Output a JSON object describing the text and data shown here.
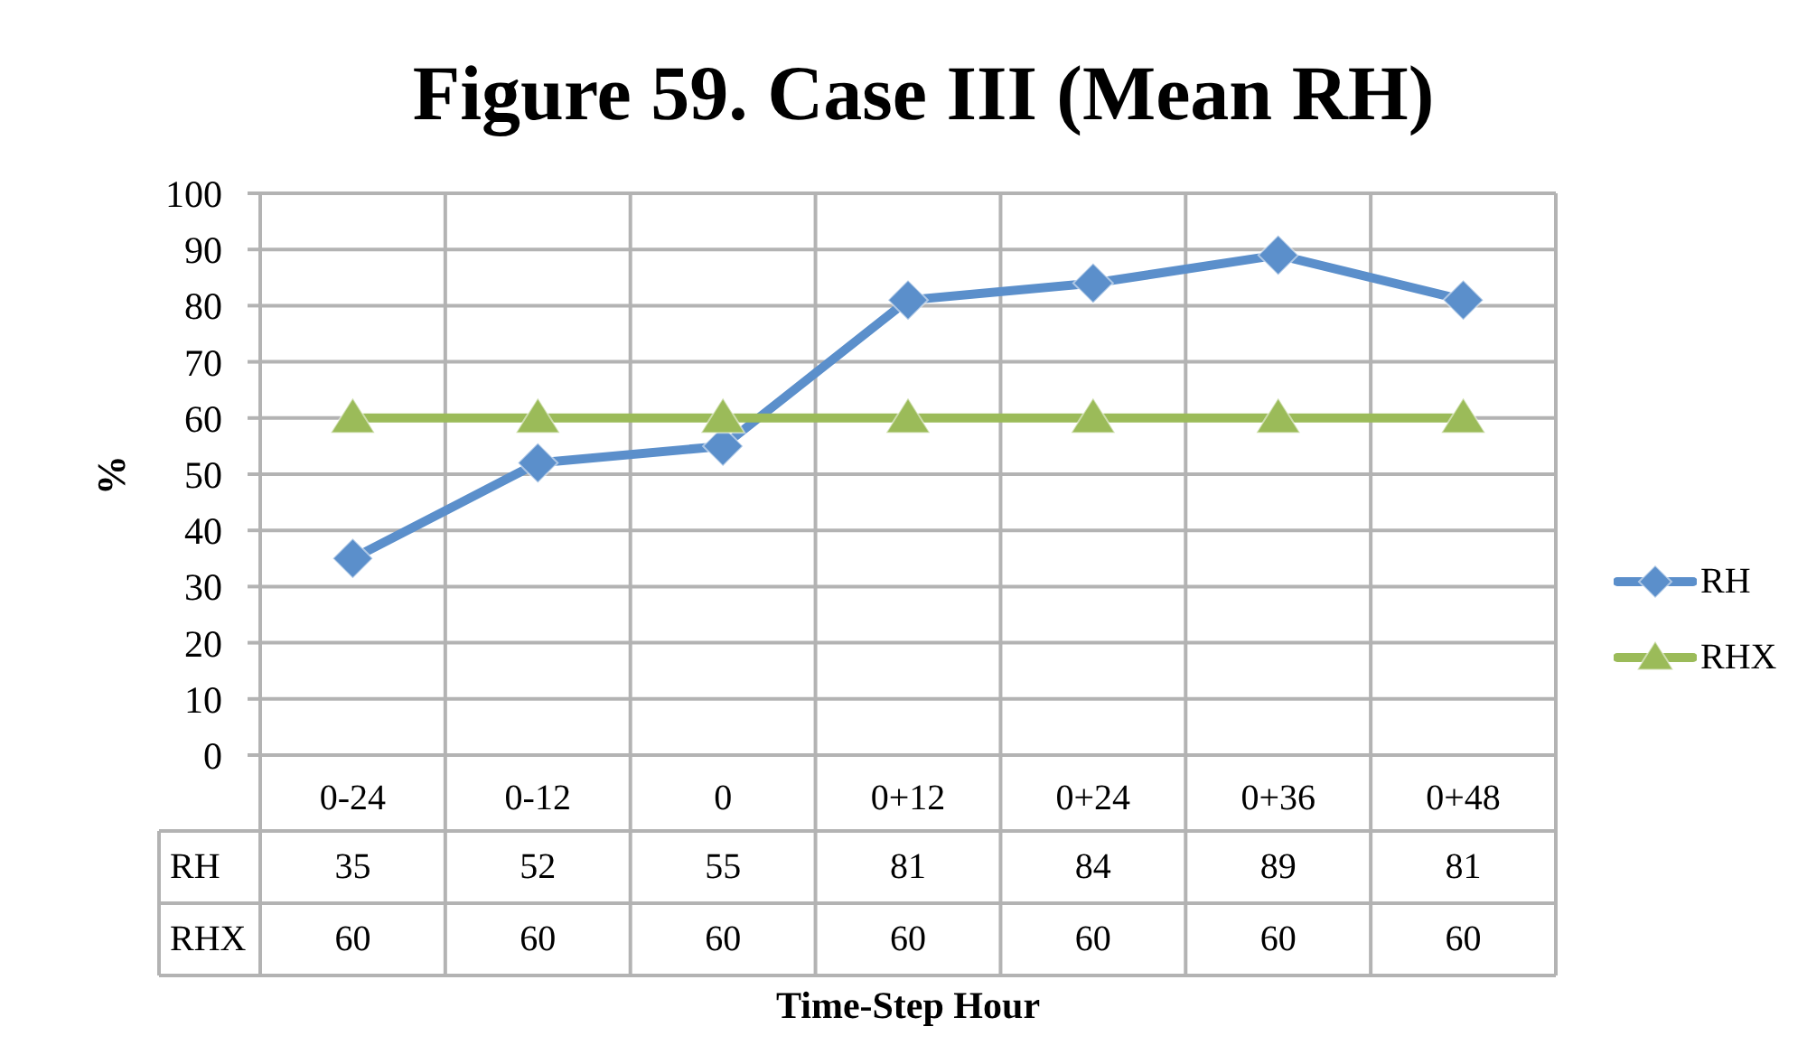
{
  "chart_data": {
    "type": "line",
    "title": "Figure 59. Case III (Mean RH)",
    "xlabel": "Time-Step Hour",
    "ylabel": "%",
    "categories": [
      "0-24",
      "0-12",
      "0",
      "0+12",
      "0+24",
      "0+36",
      "0+48"
    ],
    "series": [
      {
        "name": "RH",
        "color": "#5b8fcb",
        "marker": "diamond",
        "values": [
          35,
          52,
          55,
          81,
          84,
          89,
          81
        ]
      },
      {
        "name": "RHX",
        "color": "#9bbb59",
        "marker": "triangle",
        "values": [
          60,
          60,
          60,
          60,
          60,
          60,
          60
        ]
      }
    ],
    "ylim": [
      0,
      100
    ],
    "yticks": [
      0,
      10,
      20,
      30,
      40,
      50,
      60,
      70,
      80,
      90,
      100
    ],
    "grid": true,
    "legend": "right",
    "data_labels": true
  }
}
